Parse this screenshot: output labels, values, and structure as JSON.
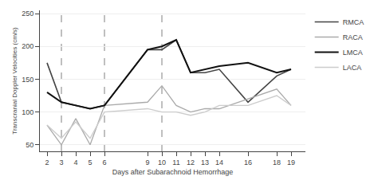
{
  "chart_data": {
    "type": "line",
    "xlabel": "Days after Subarachnoid Hemorrhage",
    "ylabel": "Transcranial Doppler Velocities (cm/s)",
    "x": [
      2,
      3,
      4,
      5,
      6,
      9,
      10,
      11,
      12,
      13,
      14,
      16,
      18,
      19
    ],
    "series": [
      {
        "name": "RMCA",
        "color": "#444444",
        "values": [
          175,
          115,
          110,
          105,
          110,
          195,
          195,
          210,
          160,
          160,
          165,
          115,
          155,
          165
        ]
      },
      {
        "name": "RACA",
        "color": "#aaaaaa",
        "values": [
          80,
          50,
          90,
          50,
          110,
          115,
          140,
          110,
          100,
          105,
          105,
          120,
          135,
          110
        ]
      },
      {
        "name": "LMCA",
        "color": "#111111",
        "values": [
          130,
          115,
          110,
          105,
          110,
          195,
          200,
          210,
          160,
          165,
          170,
          175,
          160,
          165
        ]
      },
      {
        "name": "LACA",
        "color": "#cccccc",
        "values": [
          80,
          60,
          85,
          60,
          100,
          105,
          100,
          100,
          95,
          100,
          110,
          110,
          125,
          110
        ]
      }
    ],
    "xlim": [
      1.5,
      20
    ],
    "xticks": [
      2,
      3,
      4,
      5,
      6,
      9,
      10,
      11,
      12,
      13,
      14,
      16,
      18,
      19
    ],
    "ylim": [
      40,
      255
    ],
    "yticks": [
      50,
      100,
      150,
      200,
      250
    ],
    "vlines": [
      3,
      6,
      10
    ],
    "grid": "y",
    "legend": "right"
  }
}
